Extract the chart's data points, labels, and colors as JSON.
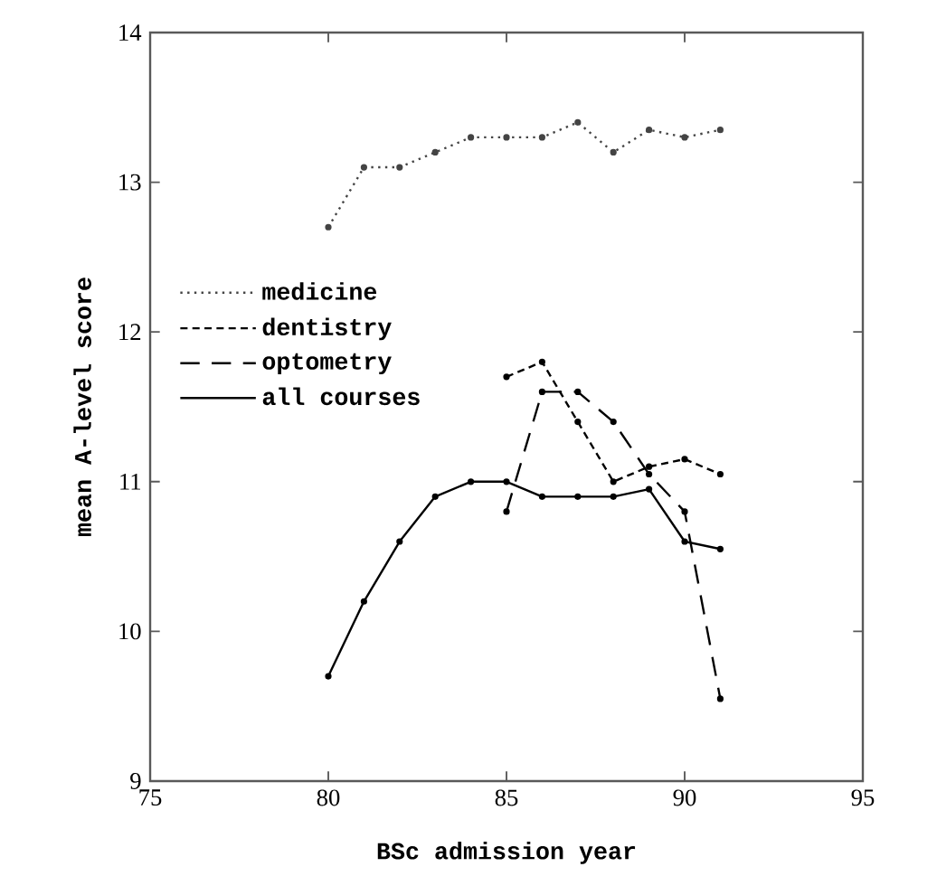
{
  "chart_data": {
    "type": "line",
    "xlabel": "BSc admission year",
    "ylabel": "mean A-level score",
    "xlim": [
      75,
      95
    ],
    "ylim": [
      9,
      14
    ],
    "xticks": [
      75,
      80,
      85,
      90,
      95
    ],
    "yticks": [
      9,
      10,
      11,
      12,
      13,
      14
    ],
    "legend": "left",
    "marker": "circle",
    "series": [
      {
        "name": "medicine",
        "color": "#444444",
        "line_style": "dotted",
        "x": [
          80,
          81,
          82,
          83,
          84,
          85,
          86,
          87,
          88,
          89,
          90,
          91
        ],
        "values": [
          12.7,
          13.1,
          13.1,
          13.2,
          13.3,
          13.3,
          13.3,
          13.4,
          13.2,
          13.35,
          13.3,
          13.35
        ]
      },
      {
        "name": "dentistry",
        "color": "#000000",
        "line_style": "dashed",
        "x": [
          85,
          86,
          87,
          88,
          89,
          90,
          91
        ],
        "values": [
          11.7,
          11.8,
          11.4,
          11.0,
          11.1,
          11.15,
          11.05
        ]
      },
      {
        "name": "optometry",
        "color": "#000000",
        "line_style": "long dashed",
        "x": [
          85,
          86,
          87,
          88,
          89,
          90,
          91
        ],
        "values": [
          10.8,
          11.6,
          11.6,
          11.4,
          11.05,
          10.8,
          9.55
        ]
      },
      {
        "name": "all courses",
        "color": "#000000",
        "line_style": "solid",
        "x": [
          80,
          81,
          82,
          83,
          84,
          85,
          86,
          87,
          88,
          89,
          90,
          91
        ],
        "values": [
          9.7,
          10.2,
          10.6,
          10.9,
          11.0,
          11.0,
          10.9,
          10.9,
          10.9,
          10.95,
          10.6,
          10.55
        ]
      }
    ]
  }
}
